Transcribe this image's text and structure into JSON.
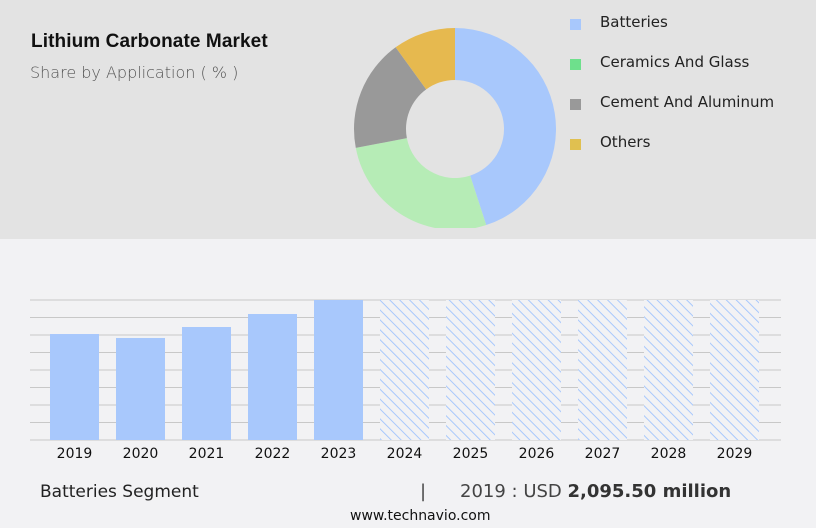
{
  "header": {
    "title": "Lithium Carbonate Market",
    "subtitle": "Share by Application ( % )"
  },
  "legend": [
    {
      "label": "Batteries",
      "color": "#a8c8fc"
    },
    {
      "label": "Ceramics And Glass",
      "color": "#6ee08c"
    },
    {
      "label": "Cement And Aluminum",
      "color": "#999999"
    },
    {
      "label": "Others",
      "color": "#e0c050"
    }
  ],
  "footer": {
    "segment": "Batteries Segment",
    "separator": "|",
    "year_label": "2019 : USD ",
    "value": "2,095.50 million",
    "url": "www.technavio.com"
  },
  "chart_data": [
    {
      "type": "pie",
      "title": "Lithium Carbonate Market",
      "subtitle": "Share by Application ( % )",
      "donut": true,
      "categories": [
        "Batteries",
        "Ceramics And Glass",
        "Cement And Aluminum",
        "Others"
      ],
      "values": [
        45,
        27,
        18,
        10
      ],
      "colors": [
        "#a8c8fc",
        "#b6ecb6",
        "#999999",
        "#e6b94f"
      ],
      "legend_position": "right"
    },
    {
      "type": "bar",
      "title": "Batteries Segment",
      "categories": [
        "2019",
        "2020",
        "2021",
        "2022",
        "2023",
        "2024",
        "2025",
        "2026",
        "2027",
        "2028",
        "2029"
      ],
      "values": [
        2095.5,
        2017,
        2234,
        2491,
        2768,
        null,
        null,
        null,
        null,
        null,
        null
      ],
      "forecast_categories": [
        "2024",
        "2025",
        "2026",
        "2027",
        "2028",
        "2029"
      ],
      "forecast_style": "hatched",
      "bar_color": "#a8c8fc",
      "grid": true,
      "xlabel": "",
      "ylabel": "",
      "annotation": "2019 : USD 2,095.50 million"
    }
  ]
}
